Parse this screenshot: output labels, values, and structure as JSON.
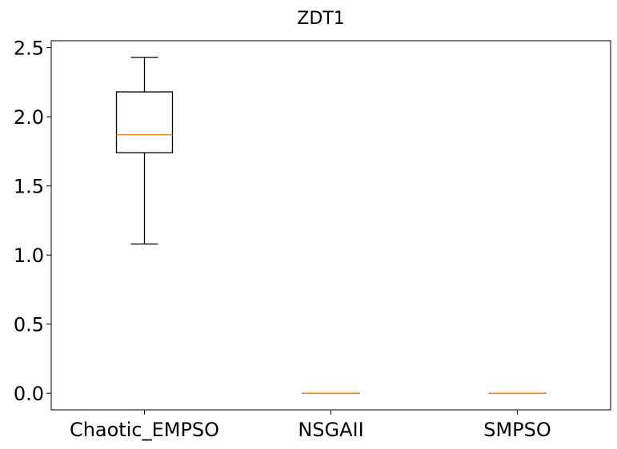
{
  "chart_data": {
    "type": "box",
    "title": "ZDT1",
    "xlabel": "",
    "ylabel": "",
    "categories": [
      "Chaotic_EMPSO",
      "NSGAII",
      "SMPSO"
    ],
    "boxes": [
      {
        "category": "Chaotic_EMPSO",
        "whislo": 1.08,
        "q1": 1.74,
        "med": 1.87,
        "q3": 2.18,
        "whishi": 2.43
      },
      {
        "category": "NSGAII",
        "whislo": 0.0,
        "q1": 0.0,
        "med": 0.0,
        "q3": 0.0,
        "whishi": 0.0
      },
      {
        "category": "SMPSO",
        "whislo": 0.0,
        "q1": 0.0,
        "med": 0.0,
        "q3": 0.0,
        "whishi": 0.0
      }
    ],
    "ylim": [
      -0.12,
      2.55
    ],
    "yticks": [
      0.0,
      0.5,
      1.0,
      1.5,
      2.0,
      2.5
    ],
    "ytick_labels": [
      "0.0",
      "0.5",
      "1.0",
      "1.5",
      "2.0",
      "2.5"
    ],
    "grid": false,
    "colors": {
      "box": "#000000",
      "median": "#ff7f0e"
    }
  }
}
